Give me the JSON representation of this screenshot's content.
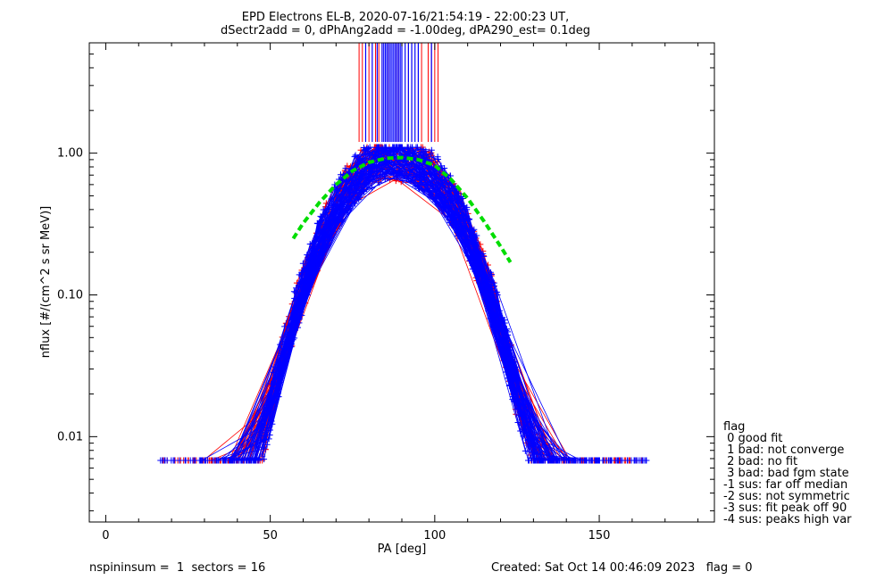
{
  "chart_data": {
    "type": "scatter",
    "title_line1": "EPD Electrons EL-B, 2020-07-16/21:54:19 - 22:00:23 UT,",
    "title_line2": "dSectr2add = 0, dPhAng2add = -1.00deg, dPA290_est=   0.1deg",
    "xlabel": "PA [deg]",
    "ylabel": "nflux [#/(cm^2 s sr MeV)]",
    "xlim": [
      -5,
      185
    ],
    "ylim": [
      0.0025,
      6.0
    ],
    "yscale": "log",
    "x_ticks": [
      0,
      50,
      100,
      150
    ],
    "x_tick_labels": [
      "0",
      "50",
      "100",
      "150"
    ],
    "y_ticks": [
      0.01,
      0.1,
      1.0
    ],
    "y_tick_labels": [
      "0.01",
      "0.10",
      "1.00"
    ],
    "grid": false,
    "colors": {
      "series_a": "#ff0000",
      "series_b": "#0000ff",
      "fit": "#00dd00"
    },
    "fit_curve": {
      "x": [
        57,
        60,
        65,
        70,
        75,
        80,
        85,
        90,
        95,
        100,
        105,
        110,
        115,
        120,
        123
      ],
      "y": [
        0.25,
        0.32,
        0.45,
        0.6,
        0.75,
        0.86,
        0.92,
        0.93,
        0.9,
        0.82,
        0.65,
        0.48,
        0.33,
        0.22,
        0.17
      ]
    },
    "vertical_markers": {
      "red": [
        77,
        78,
        80,
        82,
        83,
        84,
        86,
        88,
        89,
        90,
        92,
        93,
        95,
        96,
        98,
        99,
        100,
        101
      ],
      "blue": [
        79,
        81,
        82.5,
        84,
        84.5,
        85,
        85.5,
        86,
        86.5,
        87,
        87.5,
        88,
        88.5,
        89,
        89.5,
        90,
        91,
        92,
        93,
        94,
        95,
        99
      ],
      "ymin": 1.2
    }
  },
  "legend": {
    "title": "flag",
    "items": [
      " 0 good fit",
      " 1 bad: not converge",
      " 2 bad: no fit",
      " 3 bad: bad fgm state",
      "-1 sus: far off median",
      "-2 sus: not symmetric",
      "-3 sus: fit peak off 90",
      "-4 sus: peaks high var"
    ]
  },
  "footer": {
    "left": "nspininsum =  1  sectors = 16",
    "right": "Created: Sat Oct 14 00:46:09 2023   flag = 0"
  }
}
